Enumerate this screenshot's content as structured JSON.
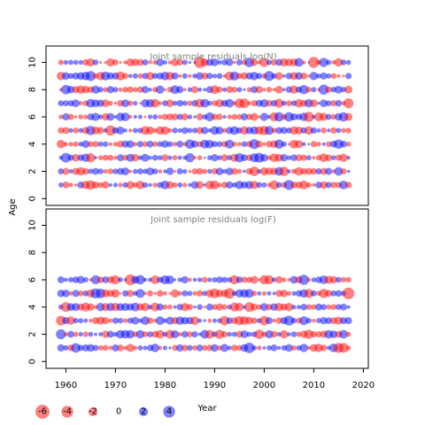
{
  "chart_data": {
    "type": "scatter",
    "subtype": "bubble-residuals",
    "colors": {
      "positive": "#0000ff",
      "negative": "#ff0000",
      "alpha": 0.5,
      "frame": "#000000",
      "title": "#808080"
    },
    "x": {
      "label": "Year",
      "range": [
        1956,
        2021
      ],
      "ticks": [
        1960,
        1970,
        1980,
        1990,
        2000,
        2010,
        2020
      ]
    },
    "y": {
      "label": "Age",
      "range": [
        -0.5,
        11.2
      ],
      "ticks": [
        0,
        2,
        4,
        6,
        8,
        10
      ]
    },
    "years": {
      "start": 1959,
      "end": 2017
    },
    "panels": [
      {
        "title": "Joint sample residuals log(N)",
        "ages": [
          1,
          2,
          3,
          4,
          5,
          6,
          7,
          8,
          9,
          10
        ],
        "seed": 17
      },
      {
        "title": "Joint sample residuals log(F)",
        "ages": [
          1,
          2,
          3,
          4,
          5,
          6
        ],
        "seed": 53
      }
    ],
    "legend": {
      "placement": "bottom-left",
      "values": [
        -6,
        -4,
        -2,
        0,
        2,
        4
      ],
      "labels": [
        "-6",
        "-4",
        "-2",
        "0",
        "2",
        "4"
      ]
    }
  }
}
